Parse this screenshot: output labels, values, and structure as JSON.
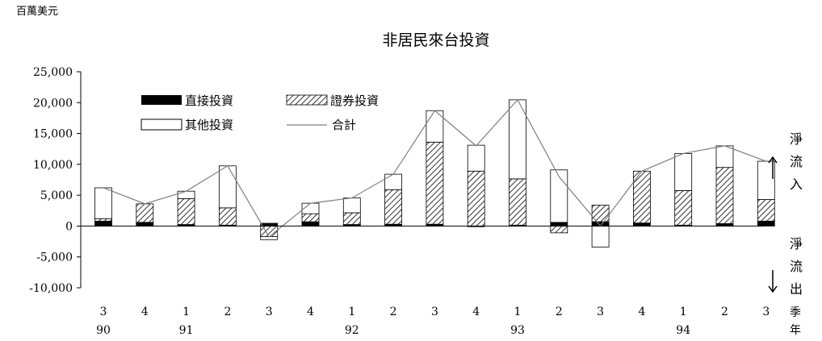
{
  "chart_data": {
    "type": "bar",
    "unit_label": "百萬美元",
    "title": "非居民來台投資",
    "categories": [
      "3",
      "4",
      "1",
      "2",
      "3",
      "4",
      "1",
      "2",
      "3",
      "4",
      "1",
      "2",
      "3",
      "4",
      "1",
      "2",
      "3"
    ],
    "year_labels": [
      {
        "index": 0,
        "label": "90"
      },
      {
        "index": 2,
        "label": "91"
      },
      {
        "index": 6,
        "label": "92"
      },
      {
        "index": 10,
        "label": "93"
      },
      {
        "index": 14,
        "label": "94"
      }
    ],
    "x_axis_end_labels": {
      "quarter": "季",
      "year": "年"
    },
    "series": [
      {
        "name": "直接投資",
        "color": "#000000",
        "values": [
          800,
          600,
          250,
          150,
          450,
          700,
          250,
          300,
          300,
          -100,
          150,
          600,
          700,
          500,
          150,
          400,
          800
        ]
      },
      {
        "name": "證券投資",
        "color": "hatch",
        "values": [
          400,
          3000,
          4200,
          2800,
          -1700,
          1300,
          1900,
          5600,
          13300,
          8900,
          7500,
          -1100,
          2700,
          8400,
          5600,
          9100,
          3500
        ]
      },
      {
        "name": "其他投資",
        "color": "#ffffff",
        "values": [
          5000,
          0,
          1200,
          6800,
          -500,
          1700,
          2400,
          2500,
          5100,
          4200,
          12800,
          8500,
          -3400,
          0,
          6000,
          3500,
          6200
        ]
      }
    ],
    "total": {
      "name": "合計",
      "color": "#7f7f7f",
      "values": [
        6200,
        3600,
        5650,
        9750,
        -1750,
        3700,
        4550,
        8400,
        18700,
        13000,
        20450,
        8000,
        0,
        8900,
        11750,
        13000,
        10500
      ]
    },
    "ylim": [
      -10000,
      25000
    ],
    "yticks": [
      "25,000",
      "20,000",
      "15,000",
      "10,000",
      "5,000",
      "0",
      "-5,000",
      "-10,000"
    ],
    "side_labels": {
      "inflow": [
        "淨",
        "流",
        "入"
      ],
      "outflow": [
        "淨",
        "流",
        "出"
      ]
    },
    "legend_position": "top-left",
    "grid": false
  }
}
